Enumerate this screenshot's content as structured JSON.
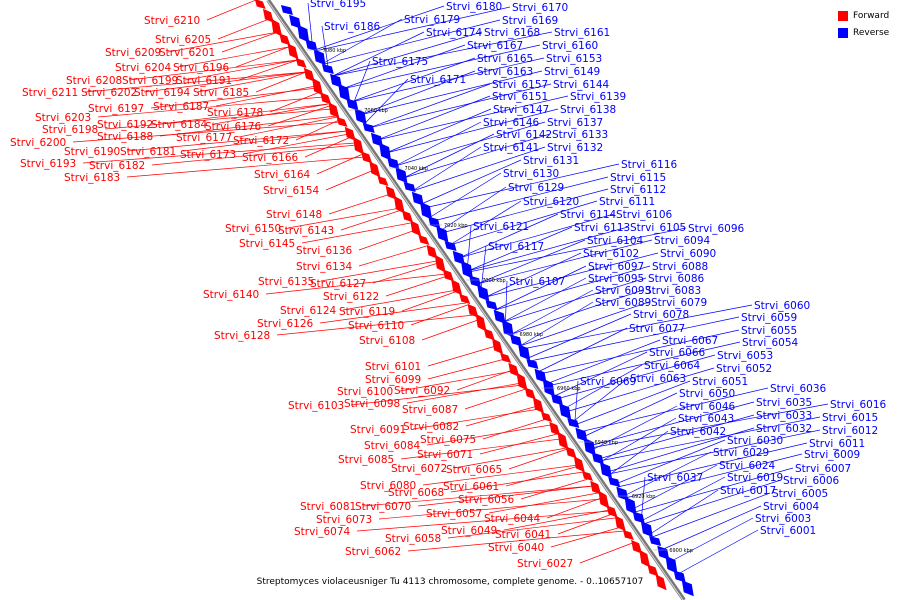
{
  "legend": {
    "forward_label": "Forward",
    "reverse_label": "Reverse",
    "forward_color": "#ff0000",
    "reverse_color": "#0000ff"
  },
  "caption": "Streptomyces violaceusniger Tu 4113 chromosome, complete genome. - 0..10657107",
  "ticks": [
    "7080 kbp",
    "7060 kbp",
    "7040 kbp",
    "7020 kbp",
    "7000 kbp",
    "6980 kbp",
    "6960 kbp",
    "6940 kbp",
    "6920 kbp",
    "6900 kbp"
  ],
  "forward_genes": [
    "Strvi_6210",
    "Strvi_6205",
    "Strvi_6209",
    "Strvi_6201",
    "Strvi_6204",
    "Strvi_6196",
    "Strvi_6208",
    "Strvi_6199",
    "Strvi_6191",
    "Strvi_6211",
    "Strvi_6202",
    "Strvi_6194",
    "Strvi_6185",
    "Strvi_6197",
    "Strvi_6187",
    "Strvi_6178",
    "Strvi_6203",
    "Strvi_6192",
    "Strvi_6184",
    "Strvi_6176",
    "Strvi_6198",
    "Strvi_6188",
    "Strvi_6177",
    "Strvi_6172",
    "Strvi_6200",
    "Strvi_6190",
    "Strvi_6181",
    "Strvi_6173",
    "Strvi_6166",
    "Strvi_6193",
    "Strvi_6182",
    "Strvi_6164",
    "Strvi_6183",
    "Strvi_6154",
    "Strvi_6148",
    "Strvi_6150",
    "Strvi_6143",
    "Strvi_6145",
    "Strvi_6136",
    "Strvi_6134",
    "Strvi_6135",
    "Strvi_6127",
    "Strvi_6140",
    "Strvi_6122",
    "Strvi_6124",
    "Strvi_6119",
    "Strvi_6126",
    "Strvi_6110",
    "Strvi_6128",
    "Strvi_6108",
    "Strvi_6101",
    "Strvi_6099",
    "Strvi_6100",
    "Strvi_6092",
    "Strvi_6103",
    "Strvi_6098",
    "Strvi_6087",
    "Strvi_6091",
    "Strvi_6082",
    "Strvi_6084",
    "Strvi_6075",
    "Strvi_6085",
    "Strvi_6071",
    "Strvi_6072",
    "Strvi_6065",
    "Strvi_6080",
    "Strvi_6068",
    "Strvi_6081",
    "Strvi_6070",
    "Strvi_6061",
    "Strvi_6073",
    "Strvi_6056",
    "Strvi_6057",
    "Strvi_6074",
    "Strvi_6049",
    "Strvi_6058",
    "Strvi_6044",
    "Strvi_6041",
    "Strvi_6040",
    "Strvi_6062",
    "Strvi_6027"
  ],
  "reverse_genes": [
    "Strvi_6195",
    "Strvi_6180",
    "Strvi_6170",
    "Strvi_6179",
    "Strvi_6169",
    "Strvi_6186",
    "Strvi_6174",
    "Strvi_6168",
    "Strvi_6161",
    "Strvi_6167",
    "Strvi_6160",
    "Strvi_6165",
    "Strvi_6153",
    "Strvi_6175",
    "Strvi_6163",
    "Strvi_6149",
    "Strvi_6171",
    "Strvi_6157",
    "Strvi_6144",
    "Strvi_6151",
    "Strvi_6139",
    "Strvi_6147",
    "Strvi_6138",
    "Strvi_6146",
    "Strvi_6137",
    "Strvi_6142",
    "Strvi_6133",
    "Strvi_6141",
    "Strvi_6132",
    "Strvi_6131",
    "Strvi_6116",
    "Strvi_6130",
    "Strvi_6115",
    "Strvi_6129",
    "Strvi_6112",
    "Strvi_6120",
    "Strvi_6111",
    "Strvi_6114",
    "Strvi_6106",
    "Strvi_6121",
    "Strvi_6113",
    "Strvi_6105",
    "Strvi_6096",
    "Strvi_6104",
    "Strvi_6094",
    "Strvi_6117",
    "Strvi_6102",
    "Strvi_6090",
    "Strvi_6097",
    "Strvi_6088",
    "Strvi_6107",
    "Strvi_6095",
    "Strvi_6086",
    "Strvi_6093",
    "Strvi_6083",
    "Strvi_6089",
    "Strvi_6079",
    "Strvi_6078",
    "Strvi_6060",
    "Strvi_6077",
    "Strvi_6059",
    "Strvi_6055",
    "Strvi_6067",
    "Strvi_6054",
    "Strvi_6066",
    "Strvi_6053",
    "Strvi_6064",
    "Strvi_6052",
    "Strvi_6063",
    "Strvi_6069",
    "Strvi_6051",
    "Strvi_6050",
    "Strvi_6036",
    "Strvi_6046",
    "Strvi_6035",
    "Strvi_6043",
    "Strvi_6033",
    "Strvi_6042",
    "Strvi_6032",
    "Strvi_6030",
    "Strvi_6016",
    "Strvi_6029",
    "Strvi_6015",
    "Strvi_6012",
    "Strvi_6024",
    "Strvi_6011",
    "Strvi_6019",
    "Strvi_6009",
    "Strvi_6037",
    "Strvi_6017",
    "Strvi_6007",
    "Strvi_6006",
    "Strvi_6005",
    "Strvi_6004",
    "Strvi_6003",
    "Strvi_6001"
  ]
}
